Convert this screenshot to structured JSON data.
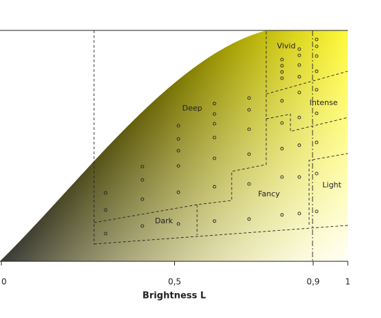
{
  "chart_data": {
    "type": "scatter",
    "xlabel": "Brightness L",
    "xlim": [
      0,
      1
    ],
    "ylim": [
      0,
      1
    ],
    "xticks": [
      0,
      {
        "value": 0.5,
        "label": "0,5"
      },
      {
        "value": 0.9,
        "label": "0,9"
      },
      1
    ],
    "annotations": [
      "Vivid",
      "Intense",
      "Deep",
      "Light",
      "Fancy",
      "Dark"
    ],
    "x": [
      0.301,
      0.301,
      0.301,
      0.407,
      0.407,
      0.407,
      0.407,
      0.511,
      0.511,
      0.511,
      0.511,
      0.511,
      0.511,
      0.615,
      0.615,
      0.615,
      0.615,
      0.615,
      0.615,
      0.615,
      0.715,
      0.715,
      0.715,
      0.715,
      0.715,
      0.715,
      0.81,
      0.81,
      0.81,
      0.81,
      0.81,
      0.81,
      0.81,
      0.81,
      0.81,
      0.86,
      0.86,
      0.86,
      0.86,
      0.86,
      0.86,
      0.86,
      0.86,
      0.86,
      0.91,
      0.91,
      0.91,
      0.91,
      0.91,
      0.91,
      0.91,
      0.91,
      0.91
    ],
    "y": [
      0.296,
      0.222,
      0.12,
      0.41,
      0.353,
      0.269,
      0.153,
      0.587,
      0.53,
      0.479,
      0.413,
      0.299,
      0.162,
      0.683,
      0.638,
      0.596,
      0.536,
      0.446,
      0.323,
      0.174,
      0.707,
      0.656,
      0.572,
      0.464,
      0.335,
      0.183,
      0.874,
      0.847,
      0.82,
      0.793,
      0.695,
      0.599,
      0.488,
      0.365,
      0.201,
      0.919,
      0.892,
      0.85,
      0.799,
      0.731,
      0.623,
      0.503,
      0.365,
      0.207,
      0.961,
      0.931,
      0.889,
      0.823,
      0.743,
      0.641,
      0.515,
      0.38,
      0.216
    ]
  }
}
